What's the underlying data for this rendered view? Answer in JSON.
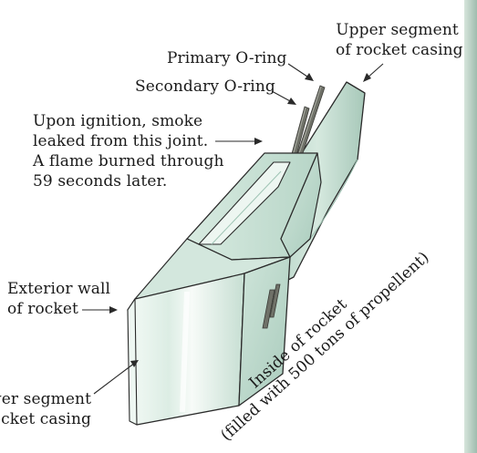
{
  "labels": {
    "upper_segment": [
      "Upper segment",
      "of rocket casing"
    ],
    "primary_oring": "Primary O-ring",
    "secondary_oring": "Secondary O-ring",
    "ignition": [
      "Upon ignition, smoke",
      "leaked from this joint.",
      "A flame burned through",
      "59 seconds later."
    ],
    "exterior_wall": [
      "Exterior wall",
      "of rocket"
    ],
    "lower_segment": [
      "wer segment",
      "ocket casing"
    ],
    "inside": [
      "Inside of rocket",
      "(filled with 500 tons of propellent)"
    ]
  },
  "colors": {
    "casing_light": "#e6f2ec",
    "casing_mid": "#c9e2d7",
    "casing_dark": "#9ec4b4",
    "casing_outline": "#2a2a2a",
    "oring": "#6f7168",
    "oring_highlight": "#a9aba2",
    "edge_strip": "#b9cfc3"
  }
}
